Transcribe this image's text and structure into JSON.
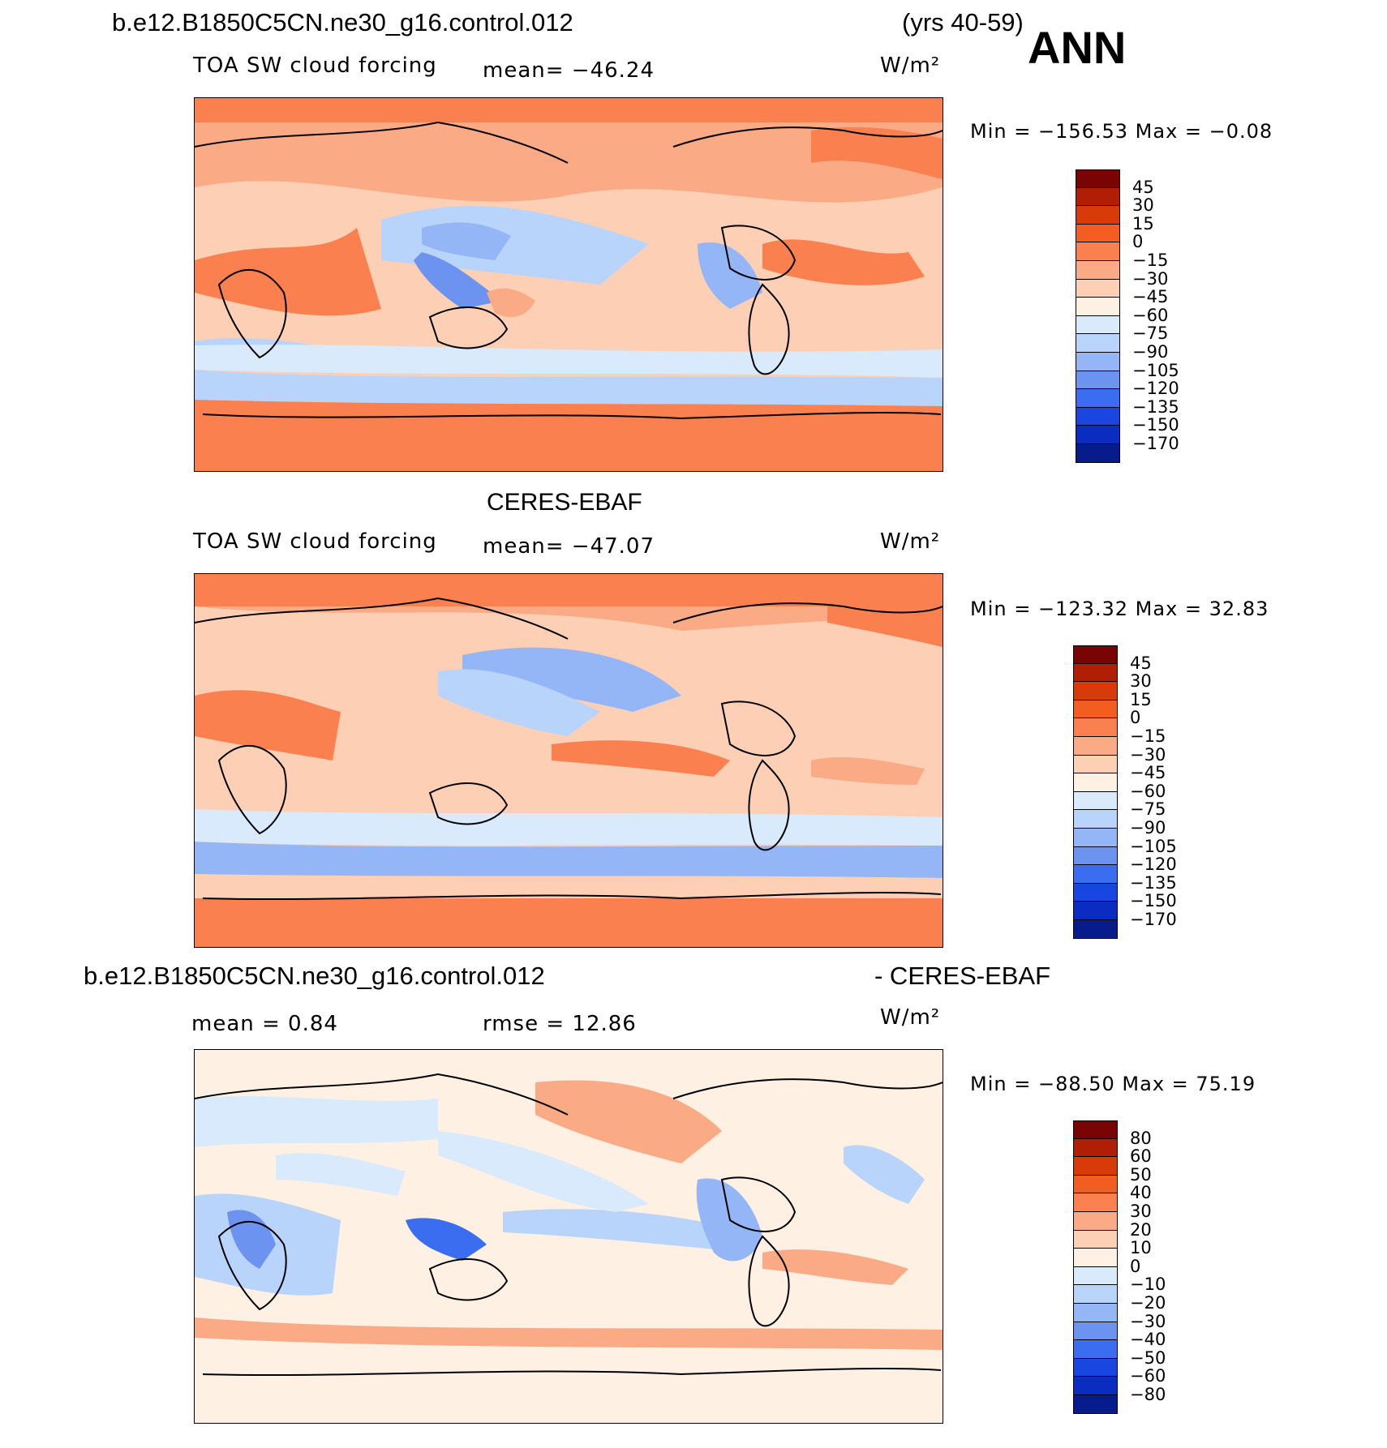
{
  "header": {
    "case_name": "b.e12.B1850C5CN.ne30_g16.control.012",
    "years": "(yrs 40-59)",
    "season": "ANN"
  },
  "panels": [
    {
      "title": "",
      "variable": "TOA SW cloud forcing",
      "mean_text": "mean= −46.24",
      "units": "W/m²",
      "minmax": "Min  =  −156.53  Max  =   −0.08",
      "colorbar": {
        "colors": [
          "#7a0403",
          "#b01e05",
          "#d93a0a",
          "#f35d1f",
          "#fa8050",
          "#fbaa86",
          "#fdd0b5",
          "#fef1e3",
          "#d8eafb",
          "#b9d4fa",
          "#94b6f6",
          "#6c93f0",
          "#3b6df1",
          "#1946e0",
          "#0a2cc0",
          "#071b8c"
        ],
        "labels": [
          "45",
          "30",
          "15",
          "0",
          "−15",
          "−30",
          "−45",
          "−60",
          "−75",
          "−90",
          "−105",
          "−120",
          "−135",
          "−150",
          "−170"
        ]
      }
    },
    {
      "title": "CERES-EBAF",
      "variable": "TOA SW cloud forcing",
      "mean_text": "mean= −47.07",
      "units": "W/m²",
      "minmax": "Min  =  −123.32  Max  =   32.83",
      "colorbar": {
        "colors": [
          "#7a0403",
          "#b01e05",
          "#d93a0a",
          "#f35d1f",
          "#fa8050",
          "#fbaa86",
          "#fdd0b5",
          "#fef1e3",
          "#d8eafb",
          "#b9d4fa",
          "#94b6f6",
          "#6c93f0",
          "#3b6df1",
          "#1946e0",
          "#0a2cc0",
          "#071b8c"
        ],
        "labels": [
          "45",
          "30",
          "15",
          "0",
          "−15",
          "−30",
          "−45",
          "−60",
          "−75",
          "−90",
          "−105",
          "−120",
          "−135",
          "−150",
          "−170"
        ]
      }
    },
    {
      "title_left": "b.e12.B1850C5CN.ne30_g16.control.012",
      "title_right": "- CERES-EBAF",
      "mean_text": "mean  =     0.84",
      "rmse_text": "rmse  =    12.86",
      "units": "W/m²",
      "minmax": "Min  =  −88.50  Max  =    75.19",
      "colorbar": {
        "colors": [
          "#7a0403",
          "#b01e05",
          "#d93a0a",
          "#f35d1f",
          "#fa8050",
          "#fbaa86",
          "#fdd0b5",
          "#fef1e3",
          "#d8eafb",
          "#b9d4fa",
          "#94b6f6",
          "#6c93f0",
          "#3b6df1",
          "#1946e0",
          "#0a2cc0",
          "#071b8c"
        ],
        "labels": [
          "80",
          "60",
          "50",
          "40",
          "30",
          "20",
          "10",
          "0",
          "−10",
          "−20",
          "−30",
          "−40",
          "−50",
          "−60",
          "−80"
        ]
      }
    }
  ]
}
